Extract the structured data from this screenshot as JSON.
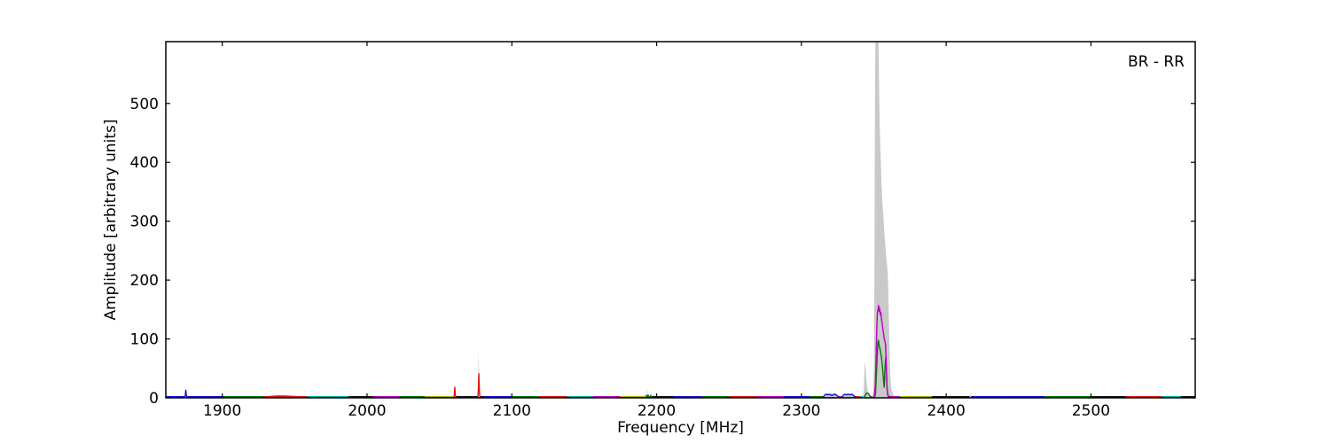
{
  "chart_data": {
    "type": "line",
    "title": "",
    "annotation": "BR - RR",
    "xlabel": "Frequency [MHz]",
    "ylabel": "Amplitude [arbitrary units]",
    "xlim": [
      1861,
      2572
    ],
    "ylim": [
      0,
      605
    ],
    "xticks": [
      1900,
      2000,
      2100,
      2200,
      2300,
      2400,
      2500
    ],
    "yticks": [
      0,
      100,
      200,
      300,
      400,
      500
    ],
    "grid": false,
    "legend": null,
    "colors": {
      "blue": "#1515dd",
      "green": "#007a00",
      "red": "#dd1414",
      "cyan": "#00b2b2",
      "magenta": "#bf00bf",
      "yellow": "#b4b400",
      "black": "#151515",
      "gray": "#c9c9c9"
    },
    "baseline_segments": [
      [
        1861,
        1900,
        "blue"
      ],
      [
        1900,
        1929,
        "green"
      ],
      [
        1929,
        1958,
        "red"
      ],
      [
        1958,
        1987,
        "cyan"
      ],
      [
        1987,
        2004,
        "black"
      ],
      [
        2004,
        2022,
        "magenta"
      ],
      [
        2022,
        2040,
        "green"
      ],
      [
        2040,
        2060,
        "yellow"
      ],
      [
        2060,
        2081,
        "black"
      ],
      [
        2081,
        2100,
        "blue"
      ],
      [
        2100,
        2119,
        "green"
      ],
      [
        2119,
        2138,
        "red"
      ],
      [
        2138,
        2156,
        "cyan"
      ],
      [
        2156,
        2175,
        "magenta"
      ],
      [
        2175,
        2193,
        "yellow"
      ],
      [
        2193,
        2212,
        "black"
      ],
      [
        2212,
        2231,
        "blue"
      ],
      [
        2231,
        2250,
        "green"
      ],
      [
        2250,
        2269,
        "red"
      ],
      [
        2269,
        2288,
        "magenta"
      ],
      [
        2288,
        2306,
        "blue"
      ],
      [
        2306,
        2325,
        "green"
      ],
      [
        2325,
        2340,
        "red"
      ],
      [
        2340,
        2348,
        "cyan"
      ],
      [
        2348,
        2368,
        "magenta"
      ],
      [
        2368,
        2390,
        "yellow"
      ],
      [
        2390,
        2416,
        "black"
      ],
      [
        2416,
        2438,
        "blue"
      ],
      [
        2438,
        2468,
        "blue"
      ],
      [
        2468,
        2500,
        "green"
      ],
      [
        2500,
        2524,
        "black"
      ],
      [
        2524,
        2549,
        "red"
      ],
      [
        2549,
        2562,
        "cyan"
      ],
      [
        2562,
        2572,
        "black"
      ]
    ],
    "series": [
      {
        "name": "gray-envelope",
        "type": "area",
        "color": "gray",
        "points": [
          [
            1861,
            0
          ],
          [
            1874,
            0
          ],
          [
            1874.6,
            3
          ],
          [
            1875,
            10
          ],
          [
            1875.4,
            3
          ],
          [
            1876,
            0
          ],
          [
            2059.8,
            0
          ],
          [
            2060.3,
            8
          ],
          [
            2060.6,
            23
          ],
          [
            2061,
            8
          ],
          [
            2061.4,
            0
          ],
          [
            2076.4,
            0
          ],
          [
            2076.8,
            30
          ],
          [
            2077.1,
            83
          ],
          [
            2077.5,
            30
          ],
          [
            2077.9,
            0
          ],
          [
            2191.4,
            0
          ],
          [
            2191.8,
            12
          ],
          [
            2192.2,
            2
          ],
          [
            2193.6,
            2
          ],
          [
            2194,
            15
          ],
          [
            2194.4,
            2
          ],
          [
            2195.8,
            2
          ],
          [
            2196.2,
            9
          ],
          [
            2196.6,
            0
          ],
          [
            2315,
            0
          ],
          [
            2316,
            6
          ],
          [
            2317.5,
            8
          ],
          [
            2319,
            7
          ],
          [
            2320.5,
            8
          ],
          [
            2322,
            7
          ],
          [
            2323.5,
            8
          ],
          [
            2325,
            5
          ],
          [
            2326,
            0
          ],
          [
            2328,
            0
          ],
          [
            2329,
            6
          ],
          [
            2330.5,
            7
          ],
          [
            2332,
            8
          ],
          [
            2333.5,
            7
          ],
          [
            2335,
            8
          ],
          [
            2336.5,
            5
          ],
          [
            2337.5,
            0
          ],
          [
            2342.3,
            0
          ],
          [
            2343,
            10
          ],
          [
            2343.8,
            62
          ],
          [
            2344.4,
            50
          ],
          [
            2345,
            28
          ],
          [
            2345.8,
            12
          ],
          [
            2346.6,
            5
          ],
          [
            2347.4,
            2
          ],
          [
            2348.2,
            1
          ],
          [
            2349,
            2
          ],
          [
            2349.6,
            10
          ],
          [
            2350.1,
            60
          ],
          [
            2350.4,
            200
          ],
          [
            2350.7,
            420
          ],
          [
            2350.9,
            540
          ],
          [
            2351.1,
            604
          ],
          [
            2353.2,
            604
          ],
          [
            2353.6,
            540
          ],
          [
            2354,
            470
          ],
          [
            2354.6,
            420
          ],
          [
            2355.2,
            370
          ],
          [
            2356,
            330
          ],
          [
            2356.8,
            300
          ],
          [
            2357.6,
            270
          ],
          [
            2358.4,
            245
          ],
          [
            2359.2,
            225
          ],
          [
            2359.8,
            200
          ],
          [
            2360.2,
            160
          ],
          [
            2360.6,
            110
          ],
          [
            2361,
            70
          ],
          [
            2361.4,
            40
          ],
          [
            2361.8,
            22
          ],
          [
            2362.4,
            12
          ],
          [
            2363,
            7
          ],
          [
            2364,
            3
          ],
          [
            2365,
            1
          ],
          [
            2366,
            0
          ],
          [
            2416,
            0
          ],
          [
            2416.4,
            4
          ],
          [
            2416.7,
            10
          ],
          [
            2417,
            3
          ],
          [
            2417.6,
            0
          ],
          [
            2572,
            0
          ]
        ]
      },
      {
        "name": "blue-trace",
        "type": "line",
        "color": "blue",
        "points": [
          [
            1873.8,
            0
          ],
          [
            1874.4,
            3
          ],
          [
            1874.8,
            13
          ],
          [
            1875.2,
            4
          ],
          [
            1875.8,
            1
          ],
          [
            1876.5,
            0
          ],
          [
            2314.8,
            0
          ],
          [
            2315.8,
            4
          ],
          [
            2316.8,
            6
          ],
          [
            2318,
            5
          ],
          [
            2319,
            6
          ],
          [
            2320,
            5
          ],
          [
            2321,
            4
          ],
          [
            2322,
            5
          ],
          [
            2323,
            6
          ],
          [
            2324,
            5
          ],
          [
            2325,
            3
          ],
          [
            2326,
            1
          ],
          [
            2326.8,
            0
          ],
          [
            2327.8,
            0
          ],
          [
            2328.8,
            4
          ],
          [
            2330,
            6
          ],
          [
            2331.2,
            5
          ],
          [
            2332.4,
            6
          ],
          [
            2333.6,
            5
          ],
          [
            2334.8,
            6
          ],
          [
            2335.8,
            4
          ],
          [
            2336.8,
            2
          ],
          [
            2337.6,
            0
          ]
        ]
      },
      {
        "name": "red-trace",
        "type": "line",
        "color": "red",
        "points": [
          [
            1927,
            0
          ],
          [
            1930,
            1.5
          ],
          [
            1934,
            2.5
          ],
          [
            1938,
            3
          ],
          [
            1943,
            3
          ],
          [
            1948,
            2.5
          ],
          [
            1953,
            2
          ],
          [
            1958,
            1
          ],
          [
            1962,
            0
          ],
          [
            2059.9,
            0
          ],
          [
            2060.3,
            6
          ],
          [
            2060.6,
            18
          ],
          [
            2061,
            5
          ],
          [
            2061.4,
            0
          ],
          [
            2076.5,
            0
          ],
          [
            2076.9,
            15
          ],
          [
            2077.2,
            41
          ],
          [
            2077.6,
            12
          ],
          [
            2078,
            0
          ]
        ]
      },
      {
        "name": "green-trace",
        "type": "line",
        "color": "green",
        "points": [
          [
            2192.6,
            0
          ],
          [
            2193,
            4
          ],
          [
            2193.4,
            1
          ],
          [
            2193.8,
            1
          ],
          [
            2194.1,
            5
          ],
          [
            2194.5,
            1
          ],
          [
            2195.5,
            1
          ],
          [
            2195.9,
            4
          ],
          [
            2196.3,
            0
          ],
          [
            2343.3,
            0
          ],
          [
            2344.2,
            5
          ],
          [
            2345,
            8
          ],
          [
            2345.8,
            8
          ],
          [
            2346.6,
            6
          ],
          [
            2347.3,
            3
          ],
          [
            2348,
            0
          ],
          [
            2350.6,
            0
          ],
          [
            2351.2,
            8
          ],
          [
            2351.8,
            40
          ],
          [
            2352.3,
            70
          ],
          [
            2352.8,
            92
          ],
          [
            2353.2,
            98
          ],
          [
            2353.6,
            90
          ],
          [
            2354,
            86
          ],
          [
            2354.4,
            82
          ],
          [
            2354.8,
            76
          ],
          [
            2355.2,
            70
          ],
          [
            2355.6,
            62
          ],
          [
            2356,
            52
          ],
          [
            2356.4,
            40
          ],
          [
            2356.8,
            28
          ],
          [
            2357.1,
            18
          ],
          [
            2357.4,
            30
          ],
          [
            2357.7,
            48
          ],
          [
            2358,
            62
          ],
          [
            2358.3,
            70
          ],
          [
            2358.6,
            55
          ],
          [
            2358.9,
            32
          ],
          [
            2359.2,
            14
          ],
          [
            2359.6,
            5
          ],
          [
            2360,
            2
          ],
          [
            2361,
            1
          ],
          [
            2362,
            0
          ]
        ]
      },
      {
        "name": "magenta-trace",
        "type": "line",
        "color": "magenta",
        "points": [
          [
            2349.8,
            0
          ],
          [
            2350.4,
            4
          ],
          [
            2351,
            20
          ],
          [
            2351.6,
            70
          ],
          [
            2352.1,
            120
          ],
          [
            2352.5,
            145
          ],
          [
            2352.9,
            150
          ],
          [
            2353.3,
            157
          ],
          [
            2353.7,
            147
          ],
          [
            2354.1,
            152
          ],
          [
            2354.5,
            141
          ],
          [
            2354.9,
            145
          ],
          [
            2355.3,
            133
          ],
          [
            2355.7,
            128
          ],
          [
            2356.1,
            120
          ],
          [
            2356.5,
            112
          ],
          [
            2356.9,
            106
          ],
          [
            2357.3,
            99
          ],
          [
            2357.7,
            96
          ],
          [
            2358.1,
            90
          ],
          [
            2358.4,
            70
          ],
          [
            2358.7,
            45
          ],
          [
            2359,
            22
          ],
          [
            2359.4,
            10
          ],
          [
            2359.8,
            4
          ],
          [
            2360.4,
            2.5
          ],
          [
            2361.5,
            2
          ],
          [
            2363,
            2
          ],
          [
            2365,
            1.5
          ],
          [
            2367,
            1
          ],
          [
            2368.5,
            0.5
          ],
          [
            2369.5,
            0
          ]
        ]
      }
    ]
  }
}
